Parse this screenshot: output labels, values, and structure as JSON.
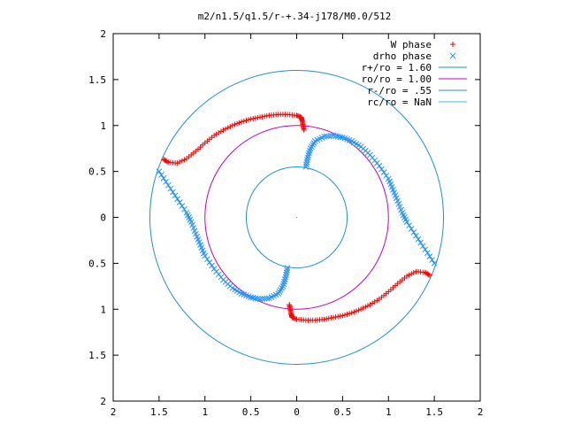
{
  "chart_data": {
    "type": "scatter",
    "title": "m2/n1.5/q1.5/r-+.34-j178/M0.0/512",
    "xlabel": "",
    "ylabel": "",
    "xlim": [
      -2,
      2
    ],
    "ylim": [
      -2,
      2
    ],
    "grid": false,
    "legend_position": "top-right",
    "x_ticks": [
      "2",
      "1.5",
      "1",
      "0.5",
      "0",
      "0.5",
      "1",
      "1.5",
      "2"
    ],
    "y_ticks": [
      "2",
      "1.5",
      "1",
      "0.5",
      "0",
      "0.5",
      "1",
      "1.5",
      "2"
    ],
    "series": [
      {
        "name": "W phase",
        "marker": "plus",
        "color": "#ff0000",
        "points": [
          [
            0.08,
            0.95
          ],
          [
            0.07,
            1.0
          ],
          [
            0.06,
            1.05
          ],
          [
            0.05,
            1.09
          ],
          [
            0.0,
            1.11
          ],
          [
            -0.1,
            1.12
          ],
          [
            -0.2,
            1.12
          ],
          [
            -0.3,
            1.11
          ],
          [
            -0.4,
            1.09
          ],
          [
            -0.5,
            1.07
          ],
          [
            -0.6,
            1.04
          ],
          [
            -0.7,
            1.0
          ],
          [
            -0.8,
            0.95
          ],
          [
            -0.9,
            0.89
          ],
          [
            -1.0,
            0.81
          ],
          [
            -1.1,
            0.72
          ],
          [
            -1.2,
            0.64
          ],
          [
            -1.3,
            0.59
          ],
          [
            -1.4,
            0.6
          ],
          [
            -1.45,
            0.63
          ],
          [
            -0.08,
            -0.95
          ],
          [
            -0.07,
            -1.0
          ],
          [
            -0.06,
            -1.05
          ],
          [
            -0.05,
            -1.09
          ],
          [
            0.0,
            -1.11
          ],
          [
            0.1,
            -1.12
          ],
          [
            0.2,
            -1.12
          ],
          [
            0.3,
            -1.11
          ],
          [
            0.4,
            -1.09
          ],
          [
            0.5,
            -1.07
          ],
          [
            0.6,
            -1.04
          ],
          [
            0.7,
            -1.0
          ],
          [
            0.8,
            -0.95
          ],
          [
            0.9,
            -0.89
          ],
          [
            1.0,
            -0.81
          ],
          [
            1.1,
            -0.72
          ],
          [
            1.2,
            -0.64
          ],
          [
            1.3,
            -0.59
          ],
          [
            1.4,
            -0.6
          ],
          [
            1.45,
            -0.63
          ]
        ]
      },
      {
        "name": "drho phase",
        "marker": "cross",
        "color": "#1e90ff",
        "points": [
          [
            0.1,
            0.55
          ],
          [
            0.12,
            0.65
          ],
          [
            0.15,
            0.75
          ],
          [
            0.2,
            0.83
          ],
          [
            0.3,
            0.88
          ],
          [
            0.4,
            0.89
          ],
          [
            0.5,
            0.87
          ],
          [
            0.6,
            0.83
          ],
          [
            0.7,
            0.77
          ],
          [
            0.8,
            0.68
          ],
          [
            0.9,
            0.56
          ],
          [
            1.0,
            0.42
          ],
          [
            1.05,
            0.3
          ],
          [
            1.1,
            0.18
          ],
          [
            1.15,
            0.05
          ],
          [
            1.2,
            -0.05
          ],
          [
            1.3,
            -0.2
          ],
          [
            1.4,
            -0.35
          ],
          [
            1.5,
            -0.5
          ],
          [
            -0.1,
            -0.55
          ],
          [
            -0.12,
            -0.65
          ],
          [
            -0.15,
            -0.75
          ],
          [
            -0.2,
            -0.83
          ],
          [
            -0.3,
            -0.88
          ],
          [
            -0.4,
            -0.89
          ],
          [
            -0.5,
            -0.87
          ],
          [
            -0.6,
            -0.83
          ],
          [
            -0.7,
            -0.77
          ],
          [
            -0.8,
            -0.68
          ],
          [
            -0.9,
            -0.56
          ],
          [
            -1.0,
            -0.42
          ],
          [
            -1.05,
            -0.3
          ],
          [
            -1.1,
            -0.18
          ],
          [
            -1.15,
            -0.05
          ],
          [
            -1.2,
            0.05
          ],
          [
            -1.3,
            0.2
          ],
          [
            -1.4,
            0.35
          ],
          [
            -1.5,
            0.5
          ]
        ]
      },
      {
        "name": "r+/ro = 1.60",
        "type": "circle",
        "radius": 1.6,
        "color": "#1f8fd6"
      },
      {
        "name": "ro/ro = 1.00",
        "type": "circle",
        "radius": 1.0,
        "color": "#c000c0"
      },
      {
        "name": "r-/ro = .55",
        "type": "circle",
        "radius": 0.55,
        "color": "#1f8fd6"
      },
      {
        "name": "rc/ro = NaN",
        "type": "circle",
        "radius": null,
        "color": "#40c0e0"
      }
    ]
  }
}
